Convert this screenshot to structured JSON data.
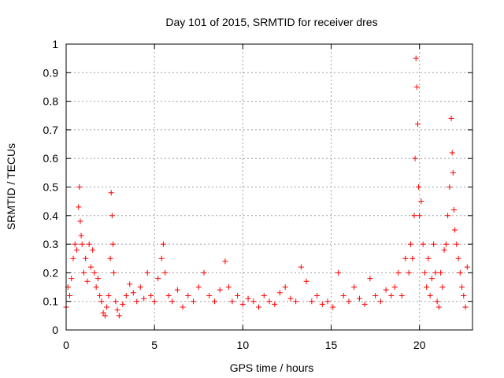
{
  "chart_data": {
    "type": "scatter",
    "title": "Day 101 of 2015, SRMTID for receiver dres",
    "xlabel": "GPS time / hours",
    "ylabel": "SRMTID / TECUs",
    "xlim": [
      0,
      23.0
    ],
    "ylim": [
      0,
      1
    ],
    "x_ticks": [
      0,
      5,
      10,
      15,
      20
    ],
    "x_tick_labels": [
      "0",
      "5",
      "10",
      "15",
      "20"
    ],
    "y_ticks": [
      0,
      0.1,
      0.2,
      0.3,
      0.4,
      0.5,
      0.6,
      0.7,
      0.8,
      0.9,
      1
    ],
    "y_tick_labels": [
      "0",
      "0.1",
      "0.2",
      "0.3",
      "0.4",
      "0.5",
      "0.6",
      "0.7",
      "0.8",
      "0.9",
      "1"
    ],
    "grid": true,
    "marker": "+",
    "series": [
      {
        "name": "SRMTID",
        "color": "#ff0000",
        "x": [
          0.0,
          0.1,
          0.2,
          0.3,
          0.4,
          0.5,
          0.6,
          0.7,
          0.75,
          0.8,
          0.85,
          0.9,
          1.0,
          1.1,
          1.2,
          1.3,
          1.4,
          1.5,
          1.6,
          1.7,
          1.8,
          1.9,
          2.0,
          2.1,
          2.2,
          2.3,
          2.4,
          2.5,
          2.55,
          2.6,
          2.65,
          2.7,
          2.8,
          2.9,
          3.0,
          3.2,
          3.4,
          3.6,
          3.8,
          4.0,
          4.2,
          4.4,
          4.6,
          4.8,
          5.0,
          5.2,
          5.4,
          5.5,
          5.6,
          5.8,
          6.0,
          6.3,
          6.6,
          6.9,
          7.2,
          7.5,
          7.8,
          8.1,
          8.4,
          8.7,
          9.0,
          9.2,
          9.4,
          9.7,
          10.0,
          10.3,
          10.6,
          10.9,
          11.2,
          11.5,
          11.8,
          12.1,
          12.4,
          12.7,
          13.0,
          13.3,
          13.6,
          13.9,
          14.2,
          14.5,
          14.8,
          15.1,
          15.4,
          15.7,
          16.0,
          16.3,
          16.6,
          16.9,
          17.2,
          17.5,
          17.8,
          18.1,
          18.4,
          18.6,
          18.8,
          19.0,
          19.2,
          19.4,
          19.5,
          19.6,
          19.7,
          19.75,
          19.8,
          19.85,
          19.9,
          19.95,
          20.0,
          20.1,
          20.2,
          20.3,
          20.4,
          20.5,
          20.6,
          20.7,
          20.8,
          20.9,
          21.0,
          21.1,
          21.2,
          21.3,
          21.4,
          21.5,
          21.6,
          21.7,
          21.8,
          21.85,
          21.9,
          21.95,
          22.0,
          22.1,
          22.2,
          22.3,
          22.4,
          22.5,
          22.6,
          22.7
        ],
        "y": [
          0.08,
          0.15,
          0.12,
          0.18,
          0.25,
          0.3,
          0.28,
          0.43,
          0.5,
          0.38,
          0.33,
          0.3,
          0.2,
          0.25,
          0.17,
          0.3,
          0.22,
          0.28,
          0.2,
          0.15,
          0.18,
          0.12,
          0.1,
          0.06,
          0.05,
          0.08,
          0.12,
          0.25,
          0.48,
          0.4,
          0.3,
          0.2,
          0.1,
          0.07,
          0.05,
          0.09,
          0.12,
          0.16,
          0.13,
          0.1,
          0.15,
          0.11,
          0.2,
          0.12,
          0.1,
          0.18,
          0.25,
          0.3,
          0.2,
          0.12,
          0.1,
          0.14,
          0.08,
          0.12,
          0.1,
          0.15,
          0.2,
          0.12,
          0.1,
          0.14,
          0.24,
          0.15,
          0.1,
          0.12,
          0.09,
          0.11,
          0.1,
          0.08,
          0.12,
          0.1,
          0.09,
          0.13,
          0.15,
          0.11,
          0.1,
          0.22,
          0.17,
          0.1,
          0.12,
          0.09,
          0.1,
          0.08,
          0.2,
          0.12,
          0.1,
          0.15,
          0.11,
          0.09,
          0.18,
          0.12,
          0.1,
          0.14,
          0.12,
          0.15,
          0.2,
          0.12,
          0.25,
          0.2,
          0.3,
          0.25,
          0.4,
          0.6,
          0.95,
          0.85,
          0.72,
          0.5,
          0.4,
          0.45,
          0.3,
          0.2,
          0.15,
          0.25,
          0.12,
          0.18,
          0.3,
          0.2,
          0.1,
          0.08,
          0.2,
          0.15,
          0.28,
          0.3,
          0.4,
          0.5,
          0.74,
          0.62,
          0.55,
          0.42,
          0.35,
          0.3,
          0.25,
          0.2,
          0.15,
          0.12,
          0.08,
          0.22
        ]
      }
    ]
  }
}
